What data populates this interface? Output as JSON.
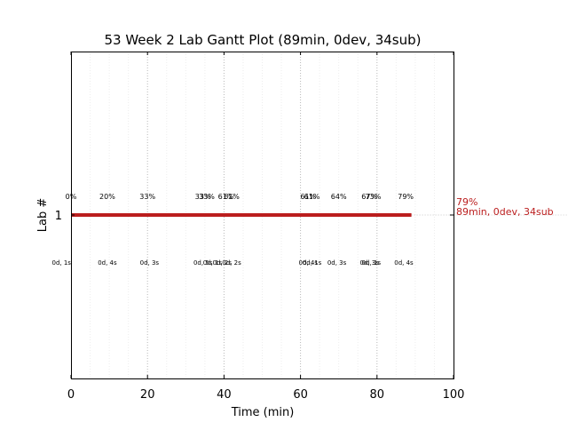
{
  "chart_data": {
    "type": "gantt",
    "title": "53 Week 2 Lab Gantt Plot (89min, 0dev, 34sub)",
    "xlabel": "Time (min)",
    "ylabel": "Lab #",
    "xlim": [
      0,
      100
    ],
    "x_ticks": [
      0,
      20,
      40,
      60,
      80,
      100
    ],
    "y_ticks": [
      "1"
    ],
    "grid": "vertical dotted lines",
    "bar": {
      "lab": "1",
      "start": 0,
      "end": 89,
      "color": "#bb1e1e"
    },
    "end_label": {
      "percent": "79%",
      "summary": "89min, 0dev, 34sub"
    },
    "percent_annotations": [
      {
        "x": 0,
        "label": "0%"
      },
      {
        "x": 9.5,
        "label": "20%"
      },
      {
        "x": 20,
        "label": "33%"
      },
      {
        "x": 34.5,
        "label": "33%"
      },
      {
        "x": 35.5,
        "label": "33%"
      },
      {
        "x": 40.5,
        "label": "61%"
      },
      {
        "x": 42,
        "label": "61%"
      },
      {
        "x": 62,
        "label": "61%"
      },
      {
        "x": 63,
        "label": "61%"
      },
      {
        "x": 70,
        "label": "64%"
      },
      {
        "x": 78,
        "label": "67%"
      },
      {
        "x": 79,
        "label": "73%"
      },
      {
        "x": 87.5,
        "label": "79%"
      }
    ],
    "duration_annotations": [
      {
        "x": -2.5,
        "label": "0d, 1s"
      },
      {
        "x": 9.5,
        "label": "0d, 4s"
      },
      {
        "x": 20.5,
        "label": "0d, 3s"
      },
      {
        "x": 34.5,
        "label": "0d, 5s"
      },
      {
        "x": 37,
        "label": "0d, 1s"
      },
      {
        "x": 39.5,
        "label": "0d, 2s"
      },
      {
        "x": 42,
        "label": "0d, 2s"
      },
      {
        "x": 62,
        "label": "0d, 4s"
      },
      {
        "x": 63,
        "label": "0d, 1s"
      },
      {
        "x": 69.5,
        "label": "0d, 3s"
      },
      {
        "x": 78,
        "label": "0d, 3s"
      },
      {
        "x": 78.5,
        "label": "0d, 1s"
      },
      {
        "x": 87,
        "label": "0d, 4s"
      }
    ]
  }
}
